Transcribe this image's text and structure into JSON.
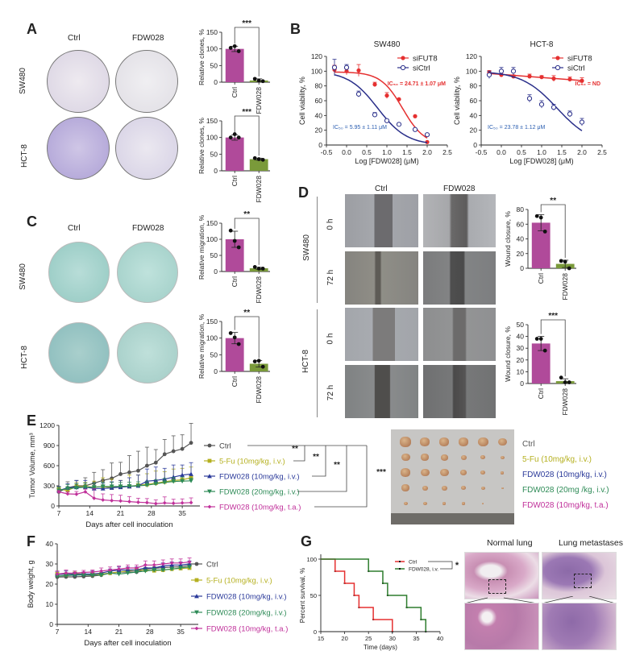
{
  "panels": {
    "A": {
      "label": "A",
      "col_ctrl": "Ctrl",
      "col_drug": "FDW028",
      "row1": "SW480",
      "row2": "HCT-8"
    },
    "B": {
      "label": "B"
    },
    "C": {
      "label": "C",
      "col_ctrl": "Ctrl",
      "col_drug": "FDW028",
      "row1": "SW480",
      "row2": "HCT-8"
    },
    "D": {
      "label": "D",
      "col_ctrl": "Ctrl",
      "col_drug": "FDW028",
      "row1": "SW480",
      "row2": "HCT-8",
      "t0": "0 h",
      "t72": "72 h"
    },
    "E": {
      "label": "E",
      "photo_legend": [
        {
          "text": "Ctrl",
          "color": "#555555"
        },
        {
          "text": "5-Fu  (10mg/kg, i.v.)",
          "color": "#b5b020"
        },
        {
          "text": "FDW028  (10mg/kg, i.v.)",
          "color": "#2b3a9a"
        },
        {
          "text": "FDW028  (20mg /kg, i.v.)",
          "color": "#2e8b57"
        },
        {
          "text": "FDW028  (10mg/kg, t.a.)",
          "color": "#c0309a"
        }
      ]
    },
    "F": {
      "label": "F"
    },
    "G": {
      "label": "G",
      "histo_normal": "Normal lung",
      "histo_meta": "Lung metastases"
    }
  },
  "colors": {
    "ctrl_bar": "#b04a9a",
    "drug_bar": "#7a9a3a",
    "red": "#e53030",
    "navy": "#2a2f8a",
    "gray": "#555555",
    "yellow": "#b5b020",
    "blue": "#2b3a9a",
    "green": "#2e8b57",
    "magenta": "#c0309a",
    "kmgreen": "#2e7d2e"
  },
  "chart_data": [
    {
      "id": "A1",
      "type": "bar",
      "categories": [
        "Ctrl",
        "FDW028"
      ],
      "values": [
        100,
        5
      ],
      "errors": [
        8,
        5
      ],
      "points": [
        [
          103,
          108,
          93
        ],
        [
          10,
          5,
          3
        ]
      ],
      "ylabel": "Relative clones, %",
      "ylim": [
        0,
        150
      ],
      "yticks": [
        0,
        50,
        100,
        150
      ],
      "significance": "***"
    },
    {
      "id": "A2",
      "type": "bar",
      "categories": [
        "Ctrl",
        "FDW028"
      ],
      "values": [
        100,
        35
      ],
      "errors": [
        8,
        3
      ],
      "points": [
        [
          100,
          110,
          100
        ],
        [
          38,
          35,
          33
        ]
      ],
      "ylabel": "Relative clones, %",
      "ylim": [
        0,
        150
      ],
      "yticks": [
        0,
        50,
        100,
        150
      ],
      "significance": "***"
    },
    {
      "id": "B1",
      "type": "line",
      "title": "SW480",
      "xlabel": "Log [FDW028]  (μM)",
      "ylabel": "Cell viability, %",
      "xlim": [
        -0.5,
        2.5
      ],
      "ylim": [
        0,
        120
      ],
      "xticks": [
        -0.5,
        0.0,
        0.5,
        1.0,
        1.5,
        2.0,
        2.5
      ],
      "yticks": [
        0,
        20,
        40,
        60,
        80,
        100,
        120
      ],
      "series": [
        {
          "name": "siFUT8",
          "marker": "filled-circle",
          "x": [
            -0.3,
            0,
            0.3,
            0.7,
            1.0,
            1.3,
            1.7,
            2.0
          ],
          "y": [
            102,
            100,
            101,
            82,
            67,
            62,
            39,
            4
          ],
          "err": [
            6,
            5,
            8,
            3,
            4,
            0,
            0,
            0
          ],
          "ic50_log": 1.39,
          "hill": 1.6,
          "top": 99,
          "bottom": 0
        },
        {
          "name": "siCtrl",
          "marker": "open-circle",
          "x": [
            -0.3,
            0,
            0.3,
            0.7,
            1.0,
            1.3,
            1.7,
            2.0
          ],
          "y": [
            105,
            105,
            69,
            41,
            33,
            28,
            21,
            14
          ],
          "err": [
            11,
            4,
            4,
            3,
            0,
            0,
            0,
            0
          ],
          "ic50_log": 0.77,
          "hill": 1.2,
          "top": 100,
          "bottom": 0
        }
      ],
      "annotations": [
        {
          "text": "IC₅₀ = 24.71 ± 1.07 μM",
          "series": "siFUT8"
        },
        {
          "text": "IC₅₀ = 5.95 ± 1.11 μM",
          "series": "siCtrl"
        }
      ]
    },
    {
      "id": "B2",
      "type": "line",
      "title": "HCT-8",
      "xlabel": "Log [FDW028]  (μM)",
      "ylabel": "Cell viability, %",
      "xlim": [
        -0.5,
        2.5
      ],
      "ylim": [
        0,
        120
      ],
      "xticks": [
        -0.5,
        0.0,
        0.5,
        1.0,
        1.5,
        2.0,
        2.5
      ],
      "yticks": [
        0,
        20,
        40,
        60,
        80,
        100,
        120
      ],
      "series": [
        {
          "name": "siFUT8",
          "marker": "filled-circle",
          "x": [
            -0.3,
            0,
            0.3,
            0.7,
            1.0,
            1.3,
            1.7,
            2.0
          ],
          "y": [
            98,
            95,
            93,
            93,
            92,
            90,
            89,
            87
          ],
          "err": [
            3,
            3,
            2,
            3,
            2,
            4,
            3,
            4
          ]
        },
        {
          "name": "siCtrl",
          "marker": "open-circle",
          "x": [
            -0.3,
            0,
            0.3,
            0.7,
            1.0,
            1.3,
            1.7,
            2.0
          ],
          "y": [
            95,
            100,
            100,
            63,
            55,
            51,
            42,
            31
          ],
          "err": [
            5,
            5,
            5,
            5,
            5,
            4,
            4,
            5
          ],
          "ic50_log": 1.38,
          "hill": 1.0,
          "top": 100,
          "bottom": 0
        }
      ],
      "annotations": [
        {
          "text": "IC₅₀ = ND",
          "series": "siFUT8"
        },
        {
          "text": "IC₅₀ = 23.78 ± 1.12 μM",
          "series": "siCtrl"
        }
      ]
    },
    {
      "id": "C1",
      "type": "bar",
      "categories": [
        "Ctrl",
        "FDW028"
      ],
      "values": [
        100,
        10
      ],
      "errors": [
        25,
        3
      ],
      "points": [
        [
          127,
          95,
          75
        ],
        [
          14,
          9,
          9
        ]
      ],
      "ylabel": "Relative migration, %",
      "ylim": [
        0,
        150
      ],
      "yticks": [
        0,
        50,
        100,
        150
      ],
      "significance": "**"
    },
    {
      "id": "C2",
      "type": "bar",
      "categories": [
        "Ctrl",
        "FDW028"
      ],
      "values": [
        100,
        23
      ],
      "errors": [
        17,
        10
      ],
      "points": [
        [
          115,
          102,
          82
        ],
        [
          30,
          32,
          14
        ]
      ],
      "ylabel": "Relative migration, %",
      "ylim": [
        0,
        150
      ],
      "yticks": [
        0,
        50,
        100,
        150
      ],
      "significance": "**"
    },
    {
      "id": "D1",
      "type": "bar",
      "categories": [
        "Ctrl",
        "FDW028"
      ],
      "values": [
        62,
        6
      ],
      "errors": [
        11,
        5
      ],
      "points": [
        [
          71,
          69,
          50
        ],
        [
          10,
          9,
          0
        ]
      ],
      "ylabel": "Wound closure, %",
      "ylim": [
        0,
        80
      ],
      "yticks": [
        0,
        20,
        40,
        60,
        80
      ],
      "significance": "**"
    },
    {
      "id": "D2",
      "type": "bar",
      "categories": [
        "Ctrl",
        "FDW028"
      ],
      "values": [
        34,
        2
      ],
      "errors": [
        6,
        2
      ],
      "points": [
        [
          38,
          38,
          28
        ],
        [
          5,
          1,
          1
        ]
      ],
      "ylabel": "Wound closure, %",
      "ylim": [
        0,
        50
      ],
      "yticks": [
        0,
        10,
        20,
        30,
        40,
        50
      ],
      "significance": "***"
    },
    {
      "id": "E",
      "type": "line",
      "xlabel": "Days after cell inoculation",
      "ylabel": "Tumor Volume, mm³",
      "xlim": [
        7,
        39
      ],
      "ylim": [
        0,
        1200
      ],
      "xticks": [
        7,
        14,
        21,
        28,
        35
      ],
      "yticks": [
        0,
        300,
        600,
        900,
        1200
      ],
      "x": [
        7,
        9,
        11,
        13,
        15,
        17,
        19,
        21,
        23,
        25,
        27,
        29,
        31,
        33,
        35,
        37
      ],
      "series": [
        {
          "name": "Ctrl",
          "marker": "circle",
          "y": [
            210,
            270,
            300,
            300,
            340,
            380,
            410,
            475,
            500,
            525,
            600,
            645,
            770,
            815,
            850,
            940
          ],
          "err": [
            80,
            90,
            80,
            120,
            160,
            160,
            230,
            175,
            250,
            290,
            275,
            195,
            220,
            230,
            210,
            290
          ]
        },
        {
          "name": "5-Fu (10mg/kg, i.v.)",
          "marker": "square",
          "y": [
            250,
            230,
            290,
            290,
            280,
            290,
            270,
            290,
            290,
            310,
            320,
            340,
            360,
            380,
            390,
            420
          ],
          "err": [
            40,
            50,
            60,
            60,
            90,
            130,
            130,
            90,
            170,
            150,
            160,
            180,
            150,
            170,
            170,
            160
          ]
        },
        {
          "name": "FDW028 (10mg/kg, i.v.)",
          "marker": "triangle-up",
          "y": [
            230,
            270,
            280,
            280,
            260,
            260,
            270,
            280,
            290,
            300,
            370,
            380,
            400,
            430,
            460,
            475
          ],
          "err": [
            60,
            60,
            100,
            100,
            80,
            80,
            90,
            100,
            130,
            160,
            180,
            200,
            160,
            180,
            150,
            170
          ]
        },
        {
          "name": "FDW028 (20mg/kg, i.v.)",
          "marker": "triangle-down",
          "y": [
            230,
            260,
            270,
            280,
            280,
            290,
            290,
            290,
            295,
            300,
            310,
            330,
            350,
            365,
            370,
            375
          ],
          "err": [
            50,
            60,
            60,
            60,
            60,
            60,
            60,
            60,
            60,
            60,
            60,
            60,
            60,
            60,
            60,
            40
          ]
        },
        {
          "name": "FDW028 (10mg/kg, t.a.)",
          "marker": "diamond",
          "y": [
            210,
            180,
            175,
            210,
            115,
            90,
            80,
            75,
            65,
            55,
            50,
            35,
            45,
            40,
            45,
            50
          ],
          "err": [
            20,
            30,
            40,
            40,
            140,
            90,
            90,
            85,
            75,
            60,
            60,
            55,
            90,
            60,
            60,
            70
          ]
        }
      ],
      "significance": [
        "**",
        "**",
        "**",
        "***"
      ]
    },
    {
      "id": "F",
      "type": "line",
      "xlabel": "Days after cell inoculation",
      "ylabel": "Body weight, g",
      "xlim": [
        7,
        39
      ],
      "ylim": [
        0,
        40
      ],
      "xticks": [
        7,
        14,
        21,
        28,
        35
      ],
      "yticks": [
        0,
        10,
        20,
        30,
        40
      ],
      "x": [
        7,
        9,
        11,
        13,
        15,
        17,
        19,
        21,
        23,
        25,
        27,
        29,
        31,
        33,
        35,
        37
      ],
      "series": [
        {
          "name": "Ctrl",
          "marker": "circle",
          "y": [
            23.5,
            23.6,
            23.6,
            23.8,
            24.0,
            24.5,
            25.5,
            26.0,
            26.0,
            26.0,
            27.5,
            27.8,
            28.2,
            28.5,
            28.6,
            29.3
          ],
          "err": [
            0.8,
            0.8,
            0.8,
            0.8,
            0.8,
            0.8,
            0.8,
            0.8,
            0.8,
            0.8,
            0.8,
            0.8,
            0.8,
            0.8,
            0.8,
            0.8
          ]
        },
        {
          "name": "5-Fu (10mg/kg, i.v.)",
          "marker": "square",
          "y": [
            25.0,
            24.8,
            25.2,
            25.0,
            24.8,
            25.0,
            25.5,
            26.0,
            26.5,
            27.0,
            27.0,
            26.7,
            27.0,
            27.5,
            27.8,
            28.0
          ],
          "err": [
            0.8,
            0.8,
            0.8,
            0.8,
            0.8,
            0.8,
            0.8,
            0.8,
            0.8,
            0.8,
            0.8,
            0.8,
            0.8,
            0.8,
            0.8,
            0.8
          ]
        },
        {
          "name": "FDW028 (10mg/kg, i.v.)",
          "marker": "triangle-up",
          "y": [
            24.8,
            25.0,
            24.8,
            25.0,
            25.0,
            25.5,
            26.5,
            27.0,
            27.0,
            27.0,
            28.0,
            28.0,
            29.0,
            29.5,
            29.5,
            30.0
          ],
          "err": [
            1.5,
            1.5,
            1.0,
            1.0,
            1.5,
            1.0,
            1.0,
            1.5,
            1.5,
            1.5,
            1.5,
            1.5,
            1.5,
            1.5,
            1.5,
            1.5
          ]
        },
        {
          "name": "FDW028 (20mg/kg, i.v.)",
          "marker": "triangle-down",
          "y": [
            24.0,
            24.2,
            24.5,
            24.5,
            24.5,
            24.5,
            25.5,
            25.0,
            25.5,
            26.0,
            26.5,
            27.0,
            27.0,
            27.5,
            28.0,
            28.5
          ],
          "err": [
            0.8,
            0.8,
            0.8,
            0.8,
            0.8,
            0.8,
            0.8,
            0.8,
            0.8,
            0.8,
            0.8,
            0.8,
            0.8,
            0.8,
            0.8,
            0.8
          ]
        },
        {
          "name": "FDW028 (10mg/kg, t.a.)",
          "marker": "diamond",
          "y": [
            25.0,
            25.5,
            25.5,
            25.8,
            26.0,
            26.5,
            27.0,
            27.5,
            28.0,
            28.0,
            29.5,
            29.5,
            30.0,
            30.5,
            30.5,
            31.0
          ],
          "err": [
            1.5,
            1.5,
            1.0,
            1.0,
            1.0,
            1.5,
            1.5,
            1.5,
            1.5,
            1.5,
            2.0,
            2.0,
            2.0,
            2.0,
            2.0,
            2.0
          ]
        }
      ]
    },
    {
      "id": "G",
      "type": "line",
      "subtype": "kaplan-meier",
      "xlabel": "Time (days)",
      "ylabel": "Percent survival, %",
      "xlim": [
        15,
        40
      ],
      "ylim": [
        0,
        100
      ],
      "xticks": [
        15,
        20,
        25,
        30,
        35,
        40
      ],
      "yticks": [
        0,
        50,
        100
      ],
      "series": [
        {
          "name": "Ctrl",
          "x": [
            15,
            18,
            20,
            22,
            23,
            26,
            30
          ],
          "y": [
            100,
            83.3,
            66.7,
            50,
            33.3,
            16.7,
            0
          ]
        },
        {
          "name": "FDW028, i.v.",
          "x": [
            15,
            25,
            28,
            29,
            33,
            36,
            37
          ],
          "y": [
            100,
            83.3,
            66.7,
            50,
            33.3,
            16.7,
            0
          ]
        }
      ],
      "significance": "*"
    }
  ]
}
